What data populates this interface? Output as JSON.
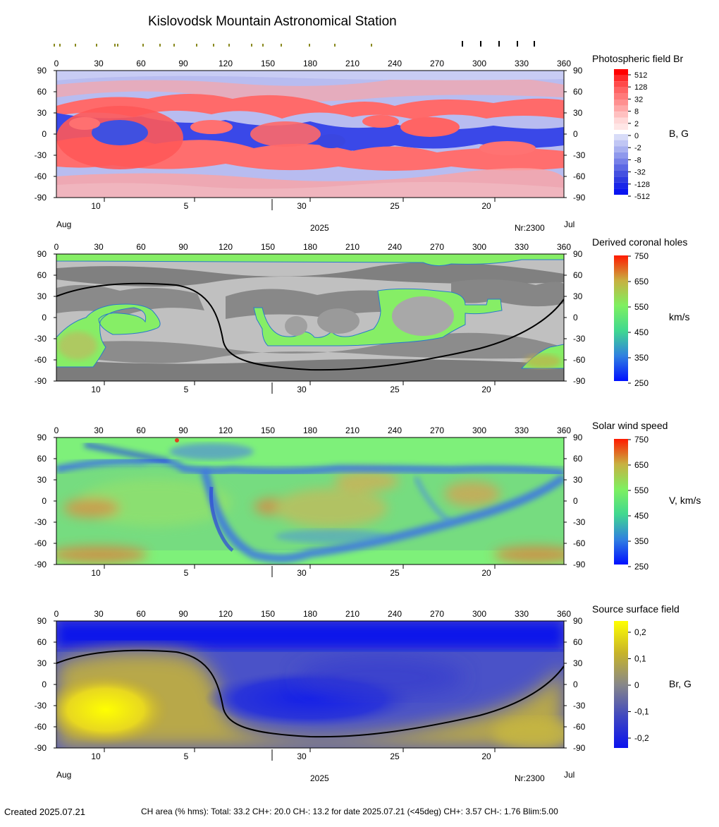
{
  "title": "Kislovodsk Mountain Astronomical Station",
  "footer": {
    "created": "Created  2025.07.21",
    "stats": "CH area (% hms): Total: 33.2 CH+: 20.0   CH-: 13.2 for date 2025.07.21 (<45deg) CH+: 3.57    CH-: 1.76 Blim:5.00"
  },
  "colors": {
    "map_red": "#ff3a3a",
    "map_blue": "#2233e0",
    "ch_gray_dark": "#808080",
    "ch_gray_light": "#c0c0c0",
    "ch_green": "#86ee66",
    "wind_green": "#7ef07a",
    "source_yellow": "#ffff00",
    "source_blue": "#0b12ee",
    "neutral_line": "#000000"
  },
  "top_ticks": {
    "olive_longitudes": [
      0,
      4,
      15,
      30,
      43,
      45,
      63,
      75,
      85,
      101,
      113,
      124,
      140,
      148,
      161,
      181,
      199,
      225
    ],
    "black_longitudes": [
      292,
      305,
      318,
      331,
      343
    ]
  },
  "chart_data": [
    {
      "type": "heatmap",
      "title": "Photospheric field Br",
      "colorbar_label": "B, G",
      "colorbar_ticks": [
        "512",
        "128",
        "32",
        "8",
        "2",
        "0",
        "-2",
        "-8",
        "-32",
        "-128",
        "-512"
      ],
      "x_ticks": [
        "0",
        "30",
        "60",
        "90",
        "120",
        "150",
        "180",
        "210",
        "240",
        "270",
        "300",
        "330",
        "360"
      ],
      "y_ticks": [
        "90",
        "60",
        "30",
        "0",
        "-30",
        "-60",
        "-90"
      ],
      "xlim": [
        0,
        360
      ],
      "ylim": [
        -90,
        90
      ],
      "date_ticks": [
        "10",
        "5",
        "30",
        "25",
        "20"
      ],
      "month_start": "Aug",
      "month_end": "Jul",
      "year": "2025",
      "rotation": "Nr:2300",
      "show_month_labels": true,
      "neutral_line": false
    },
    {
      "type": "heatmap",
      "title": "Derived coronal holes",
      "colorbar_label": "km/s",
      "colorbar_ticks": [
        "750",
        "650",
        "550",
        "450",
        "350",
        "250"
      ],
      "x_ticks": [
        "0",
        "30",
        "60",
        "90",
        "120",
        "150",
        "180",
        "210",
        "240",
        "270",
        "300",
        "330",
        "360"
      ],
      "y_ticks": [
        "90",
        "60",
        "30",
        "0",
        "-30",
        "-60",
        "-90"
      ],
      "xlim": [
        0,
        360
      ],
      "ylim": [
        -90,
        90
      ],
      "date_ticks": [
        "10",
        "5",
        "30",
        "25",
        "20"
      ],
      "show_month_labels": false,
      "neutral_line": true
    },
    {
      "type": "heatmap",
      "title": "Solar wind speed",
      "colorbar_label": "V, km/s",
      "colorbar_ticks": [
        "750",
        "650",
        "550",
        "450",
        "350",
        "250"
      ],
      "x_ticks": [
        "0",
        "30",
        "60",
        "90",
        "120",
        "150",
        "180",
        "210",
        "240",
        "270",
        "300",
        "330",
        "360"
      ],
      "y_ticks": [
        "90",
        "60",
        "30",
        "0",
        "-30",
        "-60",
        "-90"
      ],
      "xlim": [
        0,
        360
      ],
      "ylim": [
        -90,
        90
      ],
      "date_ticks": [
        "10",
        "5",
        "30",
        "25",
        "20"
      ],
      "show_month_labels": false,
      "neutral_line": false
    },
    {
      "type": "heatmap",
      "title": "Source surface field",
      "colorbar_label": "Br, G",
      "colorbar_ticks": [
        "0,2",
        "0,1",
        "0",
        "-0,1",
        "-0,2"
      ],
      "x_ticks": [
        "0",
        "30",
        "60",
        "90",
        "120",
        "150",
        "180",
        "210",
        "240",
        "270",
        "300",
        "330",
        "360"
      ],
      "y_ticks": [
        "90",
        "60",
        "30",
        "0",
        "-30",
        "-60",
        "-90"
      ],
      "xlim": [
        0,
        360
      ],
      "ylim": [
        -90,
        90
      ],
      "date_ticks": [
        "10",
        "5",
        "30",
        "25",
        "20"
      ],
      "month_start": "Aug",
      "month_end": "Jul",
      "year": "2025",
      "rotation": "Nr:2300",
      "show_month_labels": true,
      "neutral_line": true
    }
  ]
}
